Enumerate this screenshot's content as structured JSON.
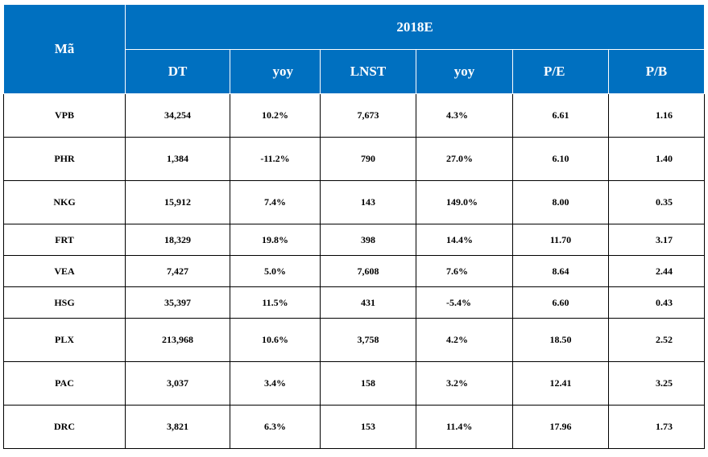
{
  "table": {
    "code_header": "Mã",
    "group_header": "2018E",
    "sub_headers": [
      "DT",
      "yoy",
      "LNST",
      "yoy",
      "P/E",
      "P/B"
    ],
    "rows": [
      {
        "code": "VPB",
        "dt": "34,254",
        "yoy1": "10.2%",
        "lnst": "7,673",
        "yoy2": "4.3%",
        "pe": "6.61",
        "pb": "1.16"
      },
      {
        "code": "PHR",
        "dt": "1,384",
        "yoy1": "-11.2%",
        "lnst": "790",
        "yoy2": "27.0%",
        "pe": "6.10",
        "pb": "1.40"
      },
      {
        "code": "NKG",
        "dt": "15,912",
        "yoy1": "7.4%",
        "lnst": "143",
        "yoy2": "149.0%",
        "pe": "8.00",
        "pb": "0.35"
      },
      {
        "code": "FRT",
        "dt": "18,329",
        "yoy1": "19.8%",
        "lnst": "398",
        "yoy2": "14.4%",
        "pe": "11.70",
        "pb": "3.17"
      },
      {
        "code": "VEA",
        "dt": "7,427",
        "yoy1": "5.0%",
        "lnst": "7,608",
        "yoy2": "7.6%",
        "pe": "8.64",
        "pb": "2.44"
      },
      {
        "code": "HSG",
        "dt": "35,397",
        "yoy1": "11.5%",
        "lnst": "431",
        "yoy2": "-5.4%",
        "pe": "6.60",
        "pb": "0.43"
      },
      {
        "code": "PLX",
        "dt": "213,968",
        "yoy1": "10.6%",
        "lnst": "3,758",
        "yoy2": "4.2%",
        "pe": "18.50",
        "pb": "2.52"
      },
      {
        "code": "PAC",
        "dt": "3,037",
        "yoy1": "3.4%",
        "lnst": "158",
        "yoy2": "3.2%",
        "pe": "12.41",
        "pb": "3.25"
      },
      {
        "code": "DRC",
        "dt": "3,821",
        "yoy1": "6.3%",
        "lnst": "153",
        "yoy2": "11.4%",
        "pe": "17.96",
        "pb": "1.73"
      }
    ]
  },
  "colors": {
    "header_bg": "#0070c0",
    "header_text": "#ffffff",
    "body_text": "#000000"
  }
}
